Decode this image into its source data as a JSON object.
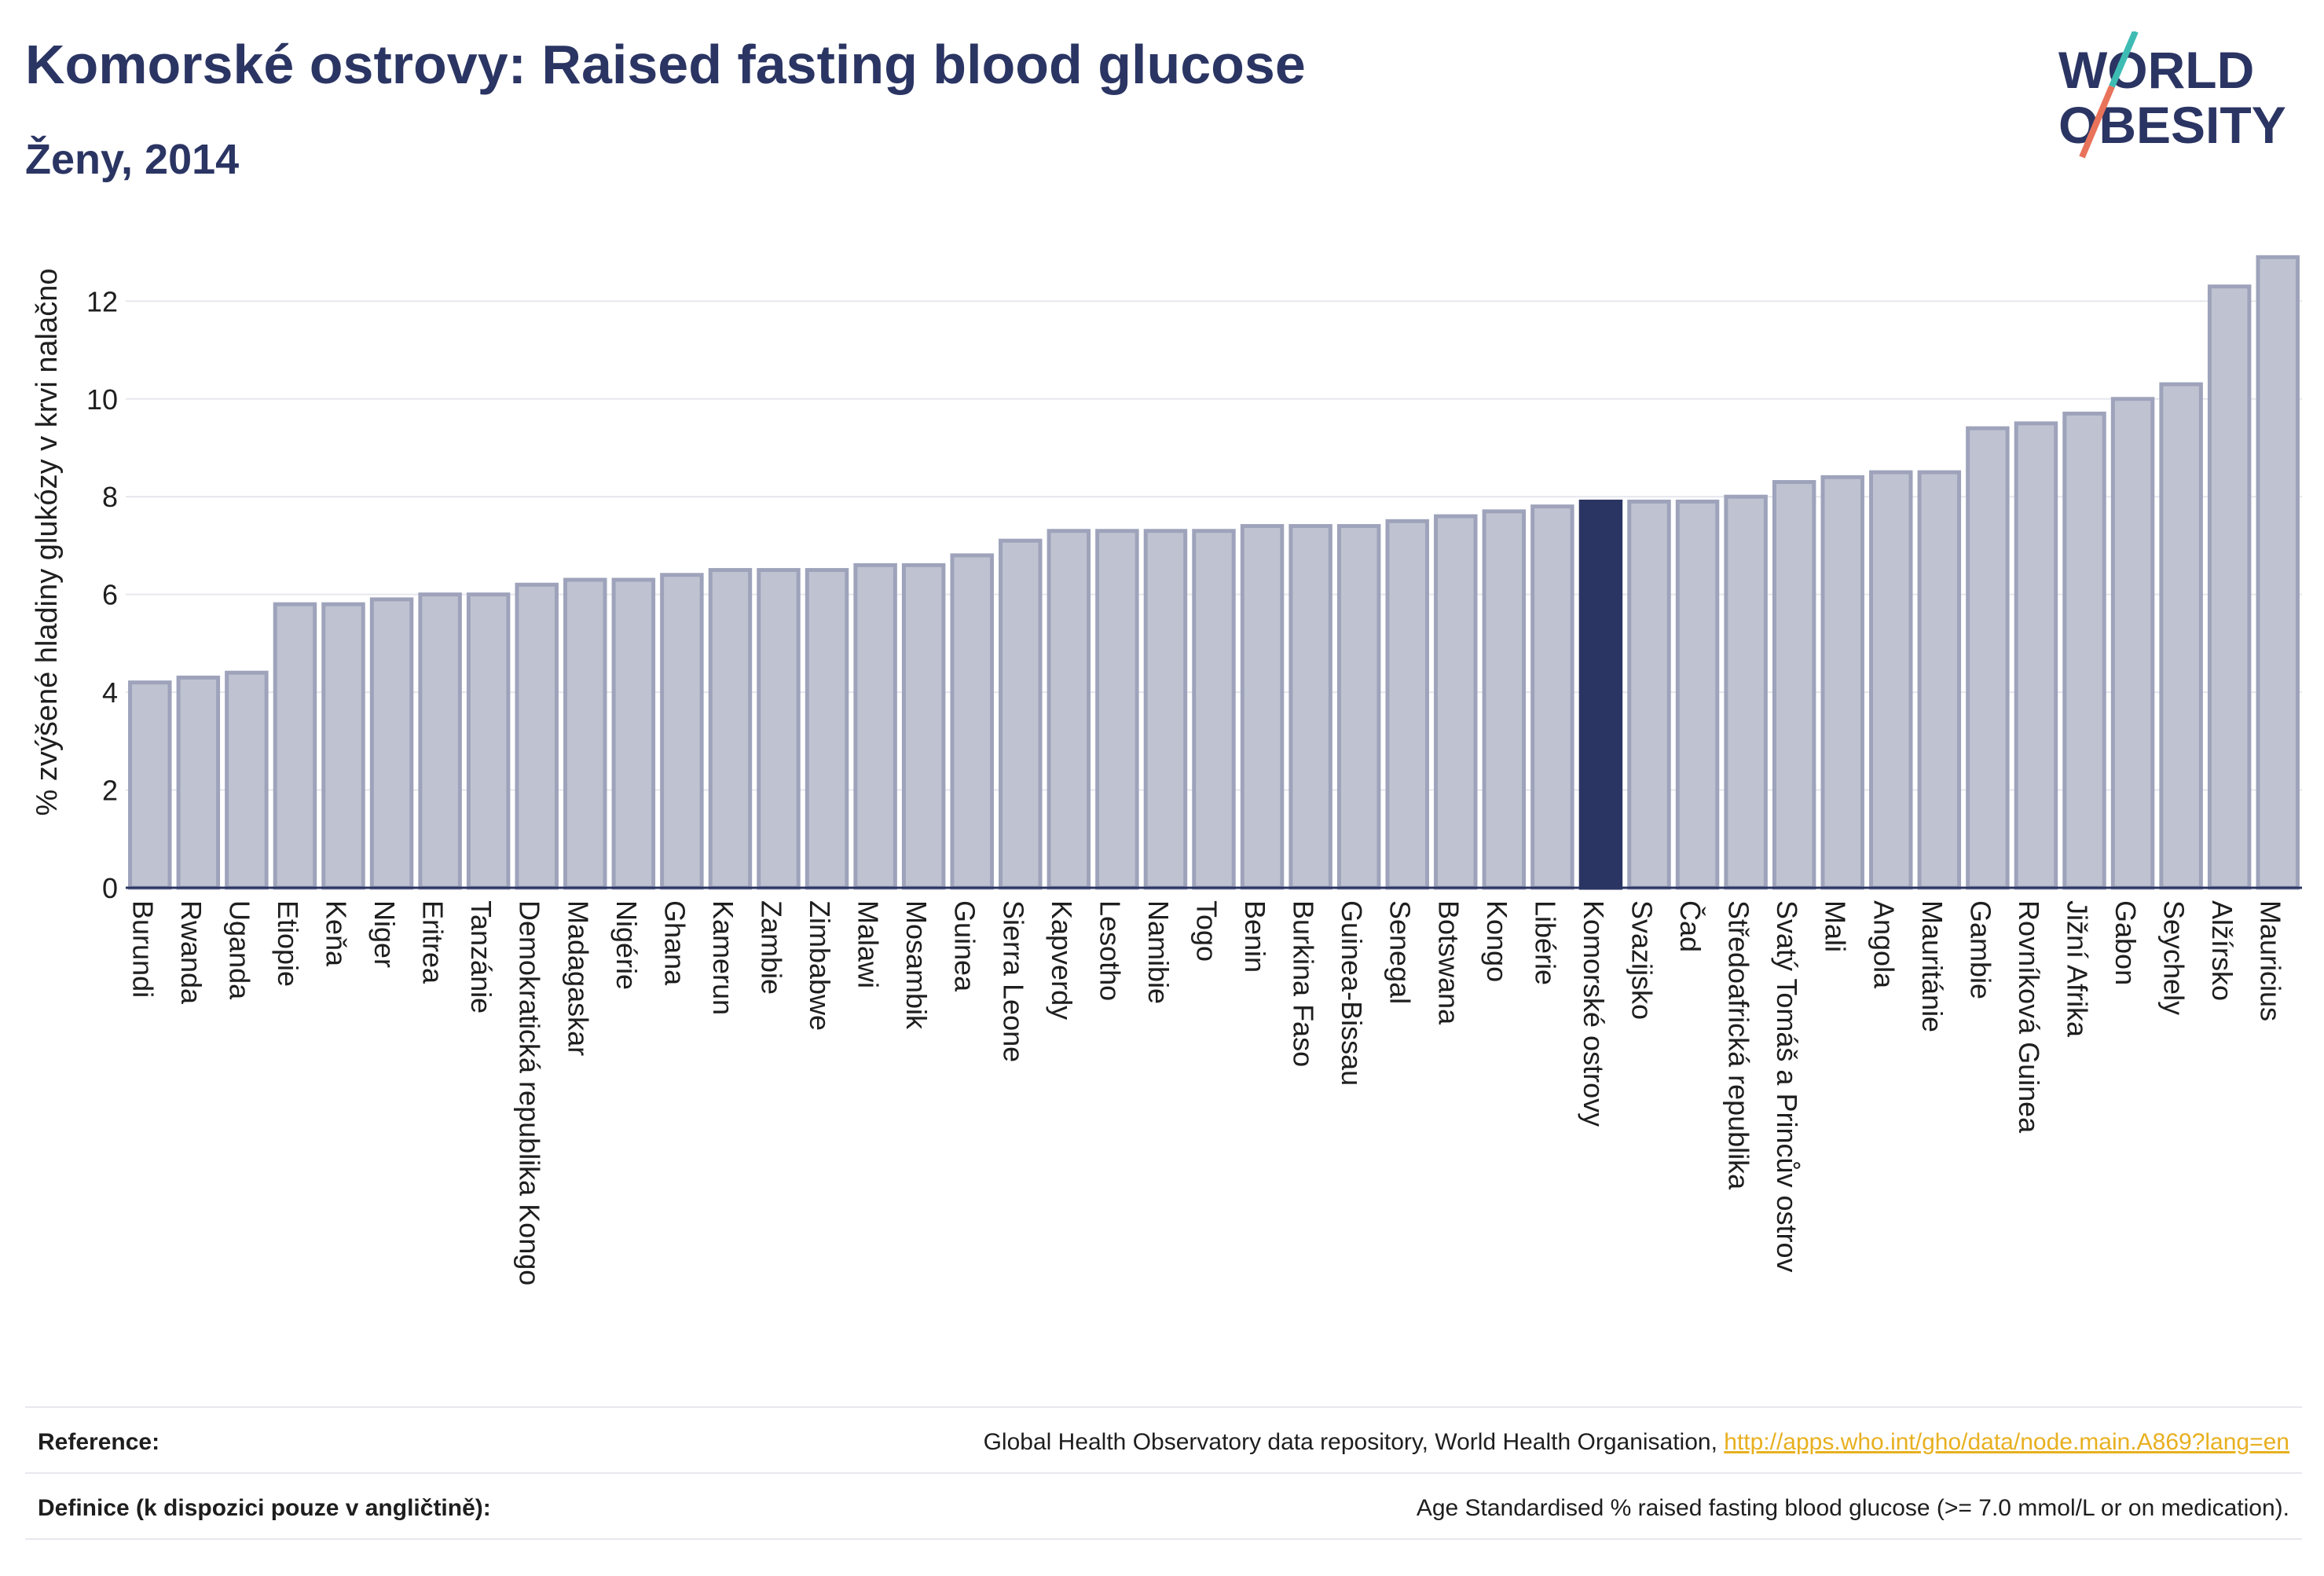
{
  "header": {
    "title": "Komorské ostrovy: Raised fasting blood glucose",
    "subtitle": "Ženy, 2014"
  },
  "logo": {
    "line1": "WORLD",
    "line2": "OBESITY",
    "text_color": "#2b3563",
    "slash_top": "#3ebcb4",
    "slash_bottom": "#e8735a"
  },
  "chart_data": {
    "type": "bar",
    "title": "Komorské ostrovy: Raised fasting blood glucose",
    "subtitle": "Ženy, 2014",
    "xlabel": "",
    "ylabel": "% zvýšené hladiny glukózy v krvi nalačno",
    "ylim": [
      0,
      13.5
    ],
    "yticks": [
      0,
      2,
      4,
      6,
      8,
      10,
      12
    ],
    "grid": true,
    "highlight": "Komorské ostrovy",
    "colors": {
      "bar": "#bfc3d1",
      "bar_edge": "#9ea3bb",
      "highlight": "#2b3563"
    },
    "categories": [
      "Burundi",
      "Rwanda",
      "Uganda",
      "Etiopie",
      "Keňa",
      "Niger",
      "Eritrea",
      "Tanzánie",
      "Demokratická republika Kongo",
      "Madagaskar",
      "Nigérie",
      "Ghana",
      "Kamerun",
      "Zambie",
      "Zimbabwe",
      "Malawi",
      "Mosambik",
      "Guinea",
      "Sierra Leone",
      "Kapverdy",
      "Lesotho",
      "Namibie",
      "Togo",
      "Benin",
      "Burkina Faso",
      "Guinea-Bissau",
      "Senegal",
      "Botswana",
      "Kongo",
      "Libérie",
      "Komorské ostrovy",
      "Svazijsko",
      "Čad",
      "Středoafrická republika",
      "Svatý Tomáš a Princův ostrov",
      "Mali",
      "Angola",
      "Mauritánie",
      "Gambie",
      "Rovníková Guinea",
      "Jižní Afrika",
      "Gabon",
      "Seychely",
      "Alžírsko",
      "Mauricius"
    ],
    "values": [
      4.2,
      4.3,
      4.4,
      5.8,
      5.8,
      5.9,
      6.0,
      6.0,
      6.2,
      6.3,
      6.3,
      6.4,
      6.5,
      6.5,
      6.5,
      6.6,
      6.6,
      6.8,
      7.1,
      7.3,
      7.3,
      7.3,
      7.3,
      7.4,
      7.4,
      7.4,
      7.5,
      7.6,
      7.7,
      7.8,
      7.9,
      7.9,
      7.9,
      8.0,
      8.3,
      8.4,
      8.5,
      8.5,
      9.4,
      9.5,
      9.7,
      10.0,
      10.3,
      12.3,
      12.9
    ]
  },
  "footer": {
    "reference_label": "Reference:",
    "reference_text": "Global Health Observatory data repository, World Health Organisation, ",
    "reference_link": "http://apps.who.int/gho/data/node.main.A869?lang=en",
    "definition_label": "Definice (k dispozici pouze v angličtině):",
    "definition_text": "Age Standardised % raised fasting blood glucose (>= 7.0 mmol/L or on medication)."
  }
}
